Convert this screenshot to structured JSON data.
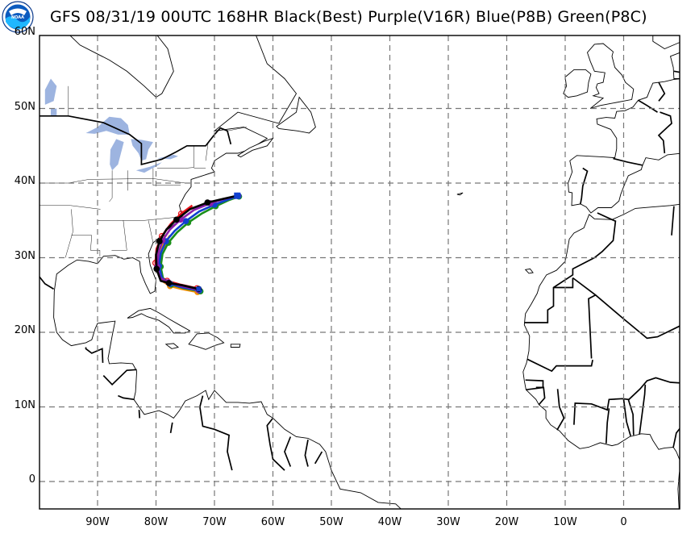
{
  "title": "GFS 08/31/19 00UTC 168HR Black(Best) Purple(V16R) Blue(P8B) Green(P8C)",
  "logo": {
    "text": "NOAA"
  },
  "map": {
    "lon_range": [
      -100,
      10
    ],
    "lat_range": [
      -4,
      65
    ],
    "lat_ticks": [
      {
        "value": 60,
        "label": "60N"
      },
      {
        "value": 50,
        "label": "50N"
      },
      {
        "value": 40,
        "label": "40N"
      },
      {
        "value": 30,
        "label": "30N"
      },
      {
        "value": 20,
        "label": "20N"
      },
      {
        "value": 10,
        "label": "10N"
      },
      {
        "value": 0,
        "label": "0"
      }
    ],
    "lon_ticks": [
      {
        "value": -90,
        "label": "90W"
      },
      {
        "value": -80,
        "label": "80W"
      },
      {
        "value": -70,
        "label": "70W"
      },
      {
        "value": -60,
        "label": "60W"
      },
      {
        "value": -50,
        "label": "50W"
      },
      {
        "value": -40,
        "label": "40W"
      },
      {
        "value": -30,
        "label": "30W"
      },
      {
        "value": -20,
        "label": "20W"
      },
      {
        "value": -10,
        "label": "10W"
      },
      {
        "value": 0,
        "label": "0"
      }
    ],
    "grid": "dashed",
    "land_color": "#ffffff",
    "lake_color": "#9db4e0",
    "coast_color": "#000000"
  },
  "tracks": [
    {
      "name": "Black(Best)",
      "color": "#000000",
      "points": [
        [
          -72.7,
          25.8
        ],
        [
          -75.5,
          26.3
        ],
        [
          -77.8,
          26.6
        ],
        [
          -79.2,
          26.9
        ],
        [
          -79.9,
          28.5
        ],
        [
          -80.0,
          30.4
        ],
        [
          -79.4,
          32.2
        ],
        [
          -78.2,
          33.8
        ],
        [
          -76.5,
          35.1
        ],
        [
          -74.2,
          36.5
        ],
        [
          -71.2,
          37.4
        ],
        [
          -68.4,
          37.9
        ],
        [
          -66.1,
          38.3
        ]
      ]
    },
    {
      "name": "Purple(V16R)",
      "color": "#8b1fa9",
      "points": [
        [
          -72.8,
          25.7
        ],
        [
          -75.7,
          26.2
        ],
        [
          -77.9,
          26.7
        ],
        [
          -79.3,
          27.3
        ],
        [
          -79.8,
          28.8
        ],
        [
          -79.6,
          30.6
        ],
        [
          -78.9,
          32.3
        ],
        [
          -77.6,
          33.8
        ],
        [
          -75.8,
          35.1
        ],
        [
          -73.5,
          36.4
        ],
        [
          -70.7,
          37.3
        ],
        [
          -68.2,
          37.9
        ],
        [
          -66.0,
          38.3
        ]
      ]
    },
    {
      "name": "Blue(P8B)",
      "color": "#1040d0",
      "points": [
        [
          -72.6,
          25.6
        ],
        [
          -75.4,
          26.0
        ],
        [
          -77.6,
          26.5
        ],
        [
          -79.0,
          27.3
        ],
        [
          -79.5,
          28.9
        ],
        [
          -79.2,
          30.6
        ],
        [
          -78.3,
          32.2
        ],
        [
          -76.8,
          33.6
        ],
        [
          -74.9,
          34.9
        ],
        [
          -72.6,
          36.2
        ],
        [
          -70.0,
          37.1
        ],
        [
          -67.7,
          37.8
        ],
        [
          -65.9,
          38.3
        ]
      ]
    },
    {
      "name": "Green(P8C)",
      "color": "#1a8f1a",
      "points": [
        [
          -72.4,
          25.5
        ],
        [
          -75.2,
          25.9
        ],
        [
          -77.4,
          26.4
        ],
        [
          -78.8,
          27.2
        ],
        [
          -79.2,
          28.8
        ],
        [
          -78.9,
          30.5
        ],
        [
          -77.9,
          32.0
        ],
        [
          -76.4,
          33.4
        ],
        [
          -74.5,
          34.7
        ],
        [
          -72.2,
          35.9
        ],
        [
          -69.8,
          36.9
        ],
        [
          -67.6,
          37.7
        ],
        [
          -65.8,
          38.2
        ]
      ]
    },
    {
      "name": "",
      "color": "#e8101a",
      "points": [
        [
          -73.0,
          25.9
        ],
        [
          -75.9,
          26.4
        ],
        [
          -78.1,
          26.9
        ],
        [
          -79.5,
          27.6
        ],
        [
          -80.1,
          29.3
        ],
        [
          -79.9,
          31.2
        ],
        [
          -79.0,
          32.9
        ],
        [
          -77.5,
          34.5
        ],
        [
          -75.7,
          35.9
        ],
        [
          -73.8,
          37.0
        ]
      ]
    },
    {
      "name": "",
      "color": "#f08a00",
      "points": [
        [
          -72.9,
          25.4
        ],
        [
          -75.6,
          25.8
        ],
        [
          -77.6,
          26.2
        ],
        [
          -79.0,
          26.9
        ],
        [
          -79.6,
          28.4
        ],
        [
          -79.5,
          30.0
        ],
        [
          -78.8,
          31.6
        ],
        [
          -77.6,
          33.0
        ]
      ]
    }
  ]
}
